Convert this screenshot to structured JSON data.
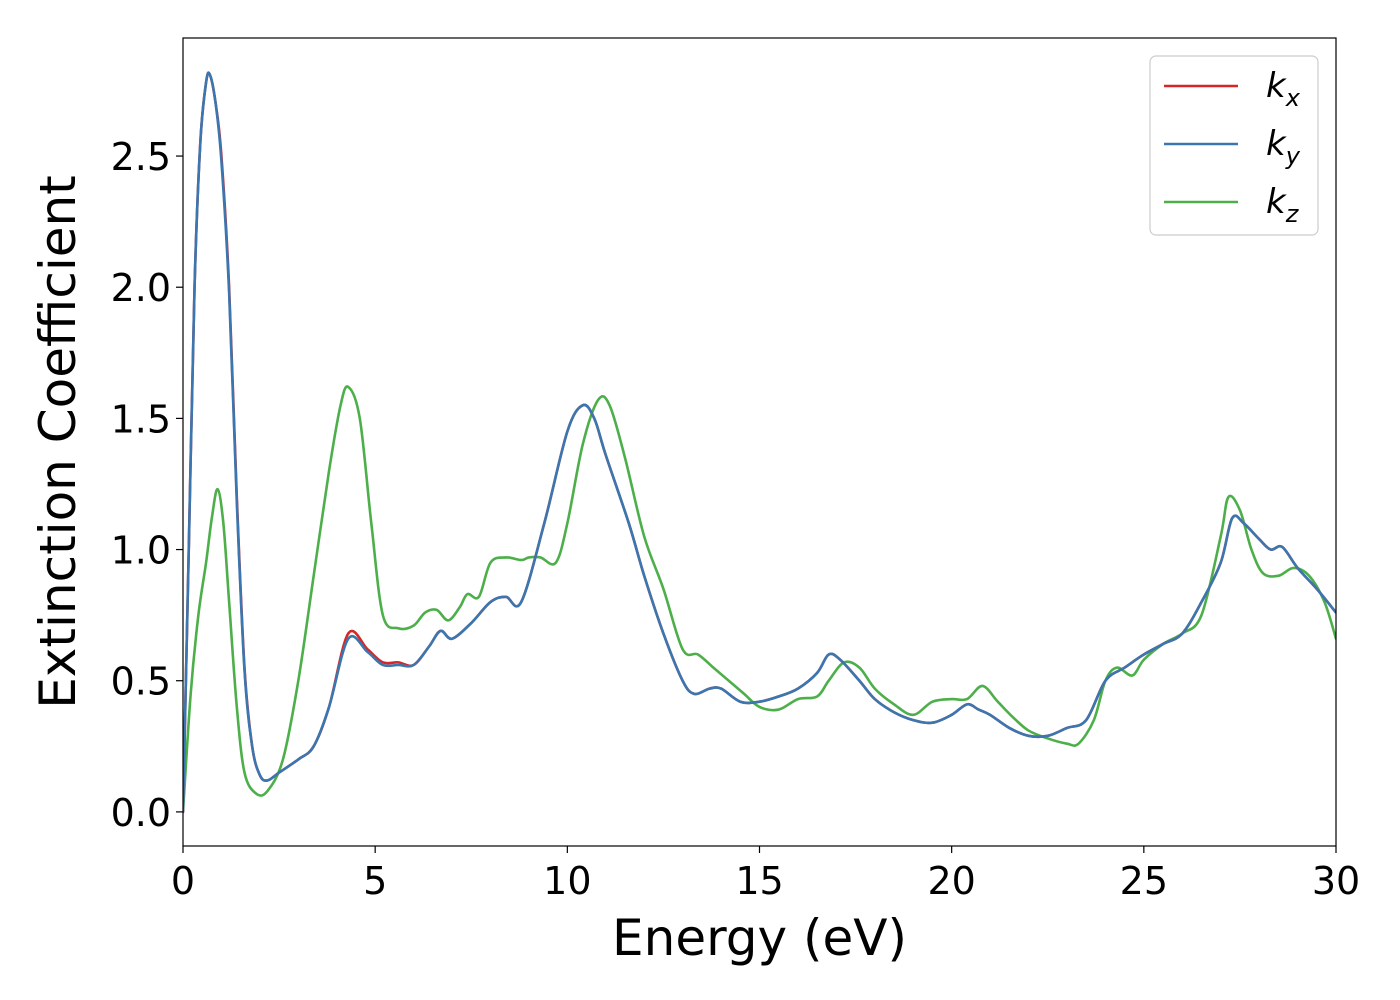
{
  "chart_data": {
    "type": "line",
    "xlabel": "Energy (eV)",
    "ylabel": "Extinction Coefficient",
    "xlim": [
      0,
      30
    ],
    "ylim": [
      -0.13,
      2.95
    ],
    "xticks": [
      "0",
      "5",
      "10",
      "15",
      "20",
      "25",
      "30"
    ],
    "yticks": [
      "0.0",
      "0.5",
      "1.0",
      "1.5",
      "2.0",
      "2.5"
    ],
    "grid": false,
    "legend_position": "top-right",
    "series": [
      {
        "name": "k_x",
        "label_base": "k",
        "label_sub": "x",
        "color": "#d62728",
        "x": [
          0,
          0.15,
          0.3,
          0.45,
          0.6,
          0.7,
          0.85,
          1.0,
          1.2,
          1.4,
          1.6,
          1.8,
          2.0,
          2.2,
          2.5,
          3.0,
          3.4,
          3.8,
          4.3,
          4.8,
          5.2,
          5.6,
          6.0,
          6.4,
          6.7,
          7.0,
          7.5,
          8.0,
          8.4,
          8.8,
          9.4,
          10.0,
          10.4,
          10.7,
          11.0,
          11.6,
          12.0,
          12.5,
          13.0,
          13.3,
          13.7,
          14.0,
          14.5,
          15.0,
          15.5,
          16.0,
          16.5,
          16.8,
          17.1,
          17.6,
          18.0,
          18.5,
          19.0,
          19.5,
          20.0,
          20.4,
          20.7,
          21.0,
          21.5,
          22.0,
          22.5,
          23.0,
          23.5,
          24.0,
          24.5,
          25.0,
          25.5,
          26.0,
          26.5,
          27.0,
          27.3,
          27.6,
          28.0,
          28.3,
          28.6,
          29.0,
          29.5,
          30.0
        ],
        "values": [
          0.0,
          1.0,
          2.0,
          2.55,
          2.78,
          2.81,
          2.7,
          2.5,
          2.0,
          1.2,
          0.55,
          0.25,
          0.14,
          0.12,
          0.15,
          0.2,
          0.25,
          0.4,
          0.68,
          0.62,
          0.57,
          0.57,
          0.56,
          0.63,
          0.69,
          0.66,
          0.72,
          0.8,
          0.82,
          0.8,
          1.1,
          1.45,
          1.55,
          1.5,
          1.36,
          1.1,
          0.9,
          0.68,
          0.5,
          0.45,
          0.47,
          0.47,
          0.42,
          0.42,
          0.44,
          0.47,
          0.53,
          0.6,
          0.58,
          0.5,
          0.43,
          0.38,
          0.35,
          0.34,
          0.37,
          0.41,
          0.39,
          0.37,
          0.32,
          0.29,
          0.29,
          0.32,
          0.35,
          0.5,
          0.55,
          0.6,
          0.64,
          0.68,
          0.8,
          0.95,
          1.12,
          1.1,
          1.04,
          1.0,
          1.01,
          0.93,
          0.85,
          0.76
        ]
      },
      {
        "name": "k_y",
        "label_base": "k",
        "label_sub": "y",
        "color": "#3a76af",
        "x": [
          0,
          0.15,
          0.3,
          0.45,
          0.6,
          0.7,
          0.85,
          1.0,
          1.2,
          1.4,
          1.6,
          1.8,
          2.0,
          2.2,
          2.5,
          3.0,
          3.4,
          3.8,
          4.3,
          4.8,
          5.2,
          5.6,
          6.0,
          6.4,
          6.7,
          7.0,
          7.5,
          8.0,
          8.4,
          8.8,
          9.4,
          10.0,
          10.4,
          10.7,
          11.0,
          11.6,
          12.0,
          12.5,
          13.0,
          13.3,
          13.7,
          14.0,
          14.5,
          15.0,
          15.5,
          16.0,
          16.5,
          16.8,
          17.1,
          17.6,
          18.0,
          18.5,
          19.0,
          19.5,
          20.0,
          20.4,
          20.7,
          21.0,
          21.5,
          22.0,
          22.5,
          23.0,
          23.5,
          24.0,
          24.5,
          25.0,
          25.5,
          26.0,
          26.5,
          27.0,
          27.3,
          27.6,
          28.0,
          28.3,
          28.6,
          29.0,
          29.5,
          30.0
        ],
        "values": [
          0.0,
          1.0,
          2.0,
          2.55,
          2.78,
          2.81,
          2.7,
          2.48,
          1.98,
          1.18,
          0.54,
          0.25,
          0.14,
          0.12,
          0.15,
          0.2,
          0.25,
          0.4,
          0.66,
          0.61,
          0.56,
          0.56,
          0.56,
          0.63,
          0.69,
          0.66,
          0.72,
          0.8,
          0.82,
          0.8,
          1.1,
          1.45,
          1.55,
          1.5,
          1.36,
          1.1,
          0.9,
          0.68,
          0.5,
          0.45,
          0.47,
          0.47,
          0.42,
          0.42,
          0.44,
          0.47,
          0.53,
          0.6,
          0.58,
          0.5,
          0.43,
          0.38,
          0.35,
          0.34,
          0.37,
          0.41,
          0.39,
          0.37,
          0.32,
          0.29,
          0.29,
          0.32,
          0.35,
          0.5,
          0.55,
          0.6,
          0.64,
          0.68,
          0.8,
          0.95,
          1.12,
          1.1,
          1.04,
          1.0,
          1.01,
          0.93,
          0.85,
          0.76
        ]
      },
      {
        "name": "k_z",
        "label_base": "k",
        "label_sub": "z",
        "color": "#4daf4a",
        "x": [
          0,
          0.2,
          0.4,
          0.6,
          0.75,
          0.9,
          1.05,
          1.2,
          1.4,
          1.6,
          1.9,
          2.2,
          2.6,
          3.0,
          3.4,
          3.8,
          4.1,
          4.3,
          4.6,
          4.9,
          5.2,
          5.6,
          6.0,
          6.3,
          6.6,
          6.9,
          7.2,
          7.4,
          7.7,
          8.0,
          8.4,
          8.8,
          9.0,
          9.3,
          9.7,
          10.0,
          10.4,
          10.8,
          11.1,
          11.5,
          12.0,
          12.5,
          13.0,
          13.4,
          13.8,
          14.2,
          14.6,
          15.0,
          15.5,
          16.0,
          16.5,
          16.8,
          17.2,
          17.6,
          18.0,
          18.5,
          19.0,
          19.5,
          20.0,
          20.4,
          20.8,
          21.2,
          21.6,
          22.0,
          22.5,
          23.0,
          23.3,
          23.7,
          24.0,
          24.3,
          24.7,
          25.0,
          25.5,
          26.0,
          26.5,
          27.0,
          27.2,
          27.5,
          27.8,
          28.1,
          28.5,
          28.9,
          29.3,
          29.7,
          30.0
        ],
        "values": [
          0.0,
          0.45,
          0.75,
          0.95,
          1.12,
          1.23,
          1.1,
          0.8,
          0.4,
          0.15,
          0.07,
          0.08,
          0.2,
          0.5,
          0.9,
          1.3,
          1.55,
          1.62,
          1.5,
          1.1,
          0.75,
          0.7,
          0.71,
          0.76,
          0.77,
          0.73,
          0.78,
          0.83,
          0.82,
          0.95,
          0.97,
          0.96,
          0.97,
          0.97,
          0.95,
          1.1,
          1.4,
          1.57,
          1.55,
          1.35,
          1.05,
          0.85,
          0.62,
          0.6,
          0.55,
          0.5,
          0.45,
          0.4,
          0.39,
          0.43,
          0.44,
          0.5,
          0.57,
          0.55,
          0.47,
          0.41,
          0.37,
          0.42,
          0.43,
          0.43,
          0.48,
          0.42,
          0.36,
          0.31,
          0.28,
          0.26,
          0.26,
          0.35,
          0.5,
          0.55,
          0.52,
          0.58,
          0.64,
          0.68,
          0.75,
          1.05,
          1.2,
          1.15,
          1.0,
          0.91,
          0.9,
          0.93,
          0.9,
          0.8,
          0.66
        ]
      }
    ]
  }
}
